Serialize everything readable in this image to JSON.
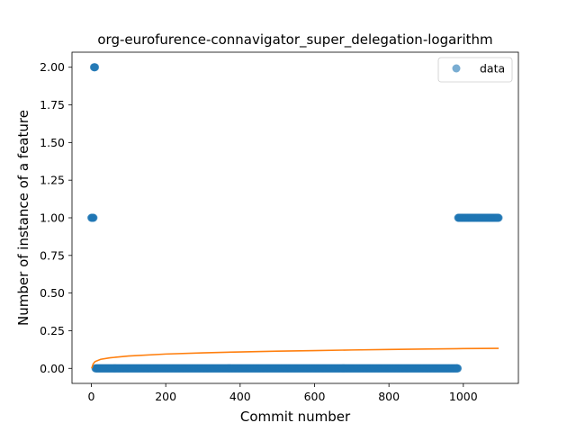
{
  "chart_data": {
    "type": "scatter",
    "title": "org-eurofurence-connavigator_super_delegation-logarithm",
    "xlabel": "Commit number",
    "ylabel": "Number of instance of a feature",
    "xlim": [
      -52,
      1148
    ],
    "ylim": [
      -0.1,
      2.1
    ],
    "x_ticks": [
      0,
      200,
      400,
      600,
      800,
      1000
    ],
    "y_ticks": [
      0.0,
      0.25,
      0.5,
      0.75,
      1.0,
      1.25,
      1.5,
      1.75,
      2.0
    ],
    "legend": {
      "position": "top-right",
      "entries": [
        "data"
      ]
    },
    "grid": false,
    "series": [
      {
        "name": "data",
        "kind": "scatter",
        "color": "#1f77b4",
        "segments": [
          {
            "x_start": 0,
            "x_end": 6,
            "step": 1,
            "y": 1
          },
          {
            "x_start": 7,
            "x_end": 10,
            "step": 1,
            "y": 2
          },
          {
            "x_start": 11,
            "x_end": 985,
            "step": 1,
            "y": 0
          },
          {
            "x_start": 986,
            "x_end": 1095,
            "step": 1,
            "y": 1
          }
        ]
      },
      {
        "kind": "line",
        "color": "#ff7f0e",
        "x_start": 1,
        "x_end": 1095,
        "curve": [
          [
            1,
            0.0
          ],
          [
            5,
            0.03
          ],
          [
            10,
            0.045
          ],
          [
            25,
            0.06
          ],
          [
            50,
            0.07
          ],
          [
            100,
            0.082
          ],
          [
            200,
            0.095
          ],
          [
            300,
            0.103
          ],
          [
            400,
            0.109
          ],
          [
            500,
            0.114
          ],
          [
            600,
            0.118
          ],
          [
            700,
            0.122
          ],
          [
            800,
            0.125
          ],
          [
            900,
            0.128
          ],
          [
            1000,
            0.131
          ],
          [
            1095,
            0.133
          ]
        ]
      }
    ]
  }
}
